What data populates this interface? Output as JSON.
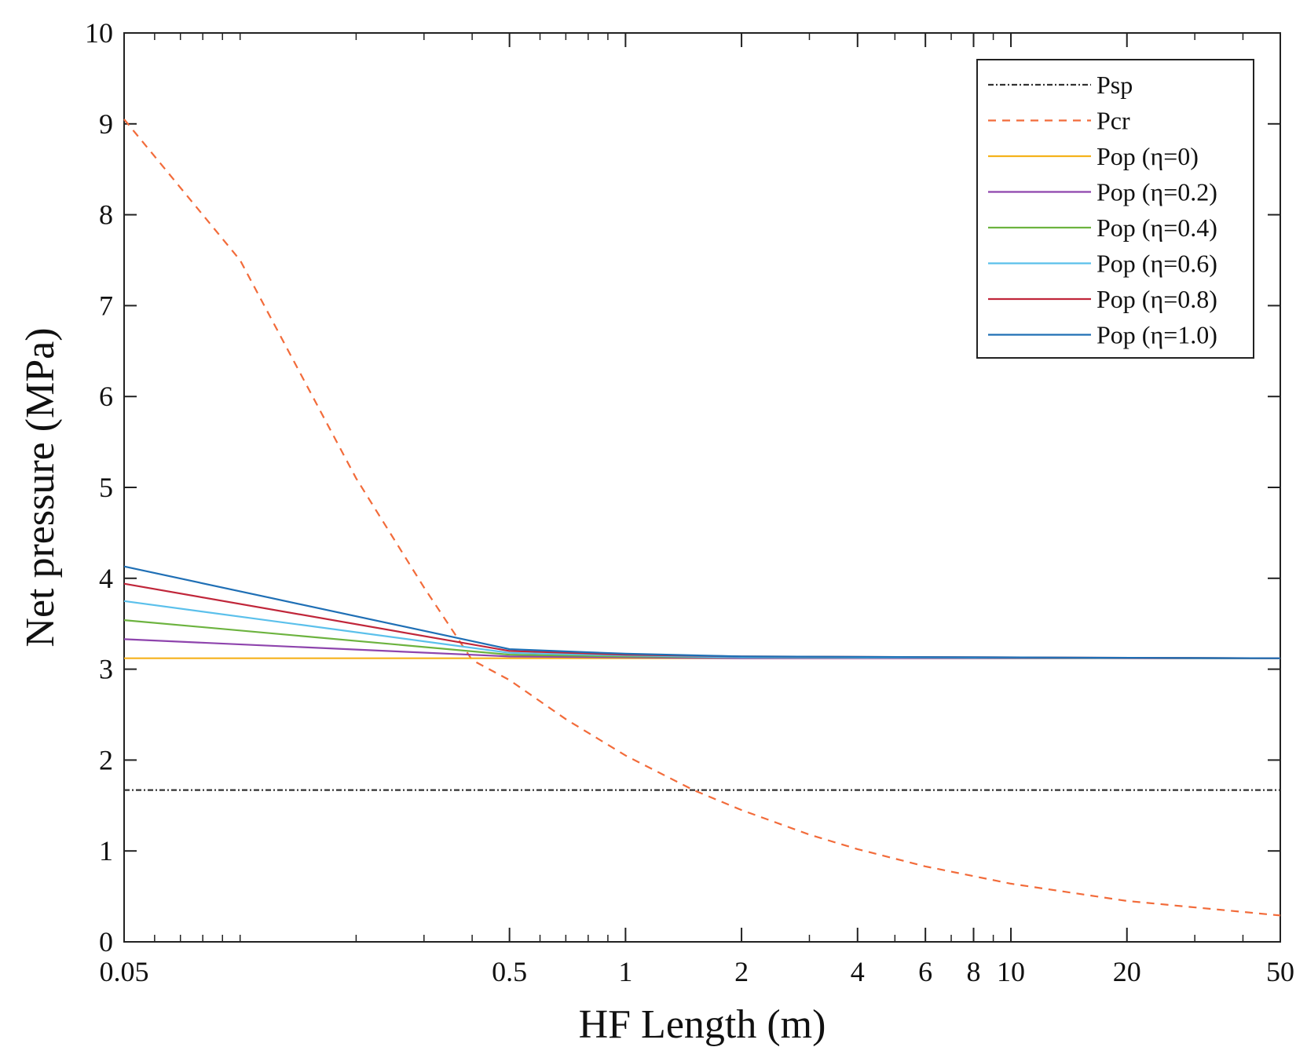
{
  "chart_data": {
    "type": "line",
    "title": "",
    "xlabel": "HF Length (m)",
    "ylabel": "Net pressure (MPa)",
    "xscale": "log",
    "xlim": [
      0.05,
      50
    ],
    "ylim": [
      0,
      10
    ],
    "x_ticks": [
      0.05,
      0.5,
      1,
      2,
      4,
      6,
      8,
      10,
      20,
      50
    ],
    "x_tick_labels": [
      "0.05",
      "0.5",
      "1",
      "2",
      "4",
      "6",
      "8",
      "10",
      "20",
      "50"
    ],
    "y_ticks": [
      0,
      1,
      2,
      3,
      4,
      5,
      6,
      7,
      8,
      9,
      10
    ],
    "y_tick_labels": [
      "0",
      "1",
      "2",
      "3",
      "4",
      "5",
      "6",
      "7",
      "8",
      "9",
      "10"
    ],
    "grid": false,
    "legend_position": "top-right",
    "series": [
      {
        "name": "Psp",
        "color": "#333333",
        "dash": "dashdot",
        "x": [
          0.05,
          50
        ],
        "y": [
          1.67,
          1.67
        ]
      },
      {
        "name": "Pcr",
        "color": "#f26b3a",
        "dash": "dashed",
        "x": [
          0.05,
          0.1,
          0.2,
          0.3,
          0.4,
          0.5,
          0.7,
          1,
          1.5,
          2,
          3,
          4,
          6,
          10,
          20,
          50
        ],
        "y": [
          9.05,
          7.5,
          5.1,
          3.9,
          3.1,
          2.88,
          2.45,
          2.05,
          1.67,
          1.45,
          1.18,
          1.02,
          0.83,
          0.64,
          0.45,
          0.29
        ]
      },
      {
        "name": "Pop (η=0)",
        "color": "#f5b21c",
        "dash": "solid",
        "x": [
          0.05,
          0.5,
          1,
          2,
          50
        ],
        "y": [
          3.12,
          3.12,
          3.12,
          3.12,
          3.12
        ]
      },
      {
        "name": "Pop (η=0.2)",
        "color": "#8e44ad",
        "dash": "solid",
        "x": [
          0.05,
          0.5,
          1,
          2,
          50
        ],
        "y": [
          3.33,
          3.14,
          3.13,
          3.12,
          3.12
        ]
      },
      {
        "name": "Pop (η=0.4)",
        "color": "#6cb33f",
        "dash": "solid",
        "x": [
          0.05,
          0.5,
          1,
          2,
          50
        ],
        "y": [
          3.54,
          3.16,
          3.14,
          3.13,
          3.12
        ]
      },
      {
        "name": "Pop (η=0.6)",
        "color": "#5bc0eb",
        "dash": "solid",
        "x": [
          0.05,
          0.5,
          1,
          2,
          50
        ],
        "y": [
          3.75,
          3.18,
          3.15,
          3.13,
          3.12
        ]
      },
      {
        "name": "Pop (η=0.8)",
        "color": "#c0263a",
        "dash": "solid",
        "x": [
          0.05,
          0.5,
          1,
          2,
          50
        ],
        "y": [
          3.94,
          3.2,
          3.16,
          3.14,
          3.12
        ]
      },
      {
        "name": "Pop (η=1.0)",
        "color": "#1f6fb5",
        "dash": "solid",
        "x": [
          0.05,
          0.5,
          1,
          2,
          50
        ],
        "y": [
          4.13,
          3.22,
          3.17,
          3.14,
          3.12
        ]
      }
    ]
  }
}
